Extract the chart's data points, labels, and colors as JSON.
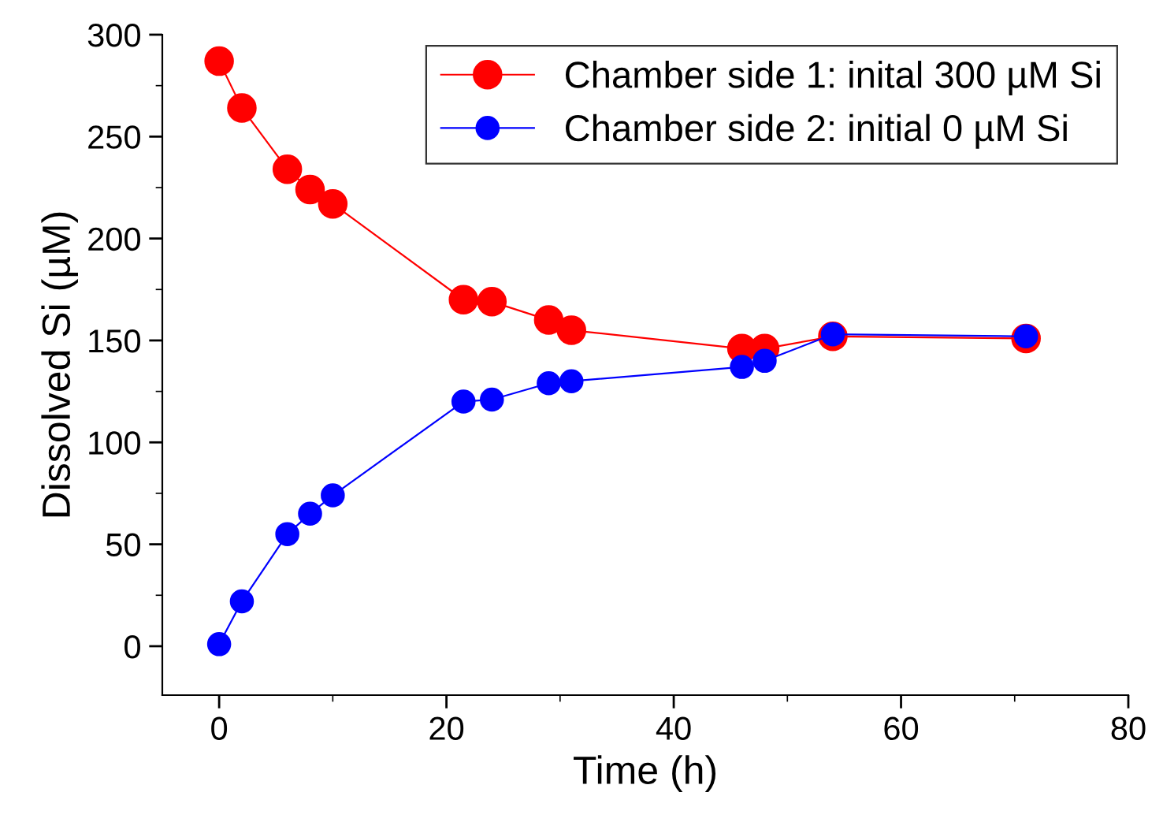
{
  "chart_data": {
    "type": "line",
    "xlabel": "Time (h)",
    "ylabel": "Dissolved Si (µM)",
    "x": [
      0,
      2,
      6,
      8,
      10,
      21.5,
      24,
      29,
      31,
      46,
      48,
      54,
      71
    ],
    "series": [
      {
        "name": "Chamber side 1: inital 300 µM Si",
        "color": "#ff0000",
        "values": [
          287,
          264,
          234,
          224,
          217,
          170,
          169,
          160,
          155,
          146,
          146,
          152,
          151
        ]
      },
      {
        "name": "Chamber side 2: initial 0 µM Si",
        "color": "#0000ff",
        "values": [
          1,
          22,
          55,
          65,
          74,
          120,
          121,
          129,
          130,
          137,
          140,
          153,
          152
        ]
      }
    ],
    "xlim": [
      -5,
      80
    ],
    "xticks": [
      0,
      20,
      40,
      60,
      80
    ],
    "ylim": [
      -24,
      300
    ],
    "yticks": [
      0,
      50,
      100,
      150,
      200,
      250,
      300
    ],
    "marker": "circle",
    "line_style": "solid",
    "grid": false,
    "legend": "top right"
  }
}
